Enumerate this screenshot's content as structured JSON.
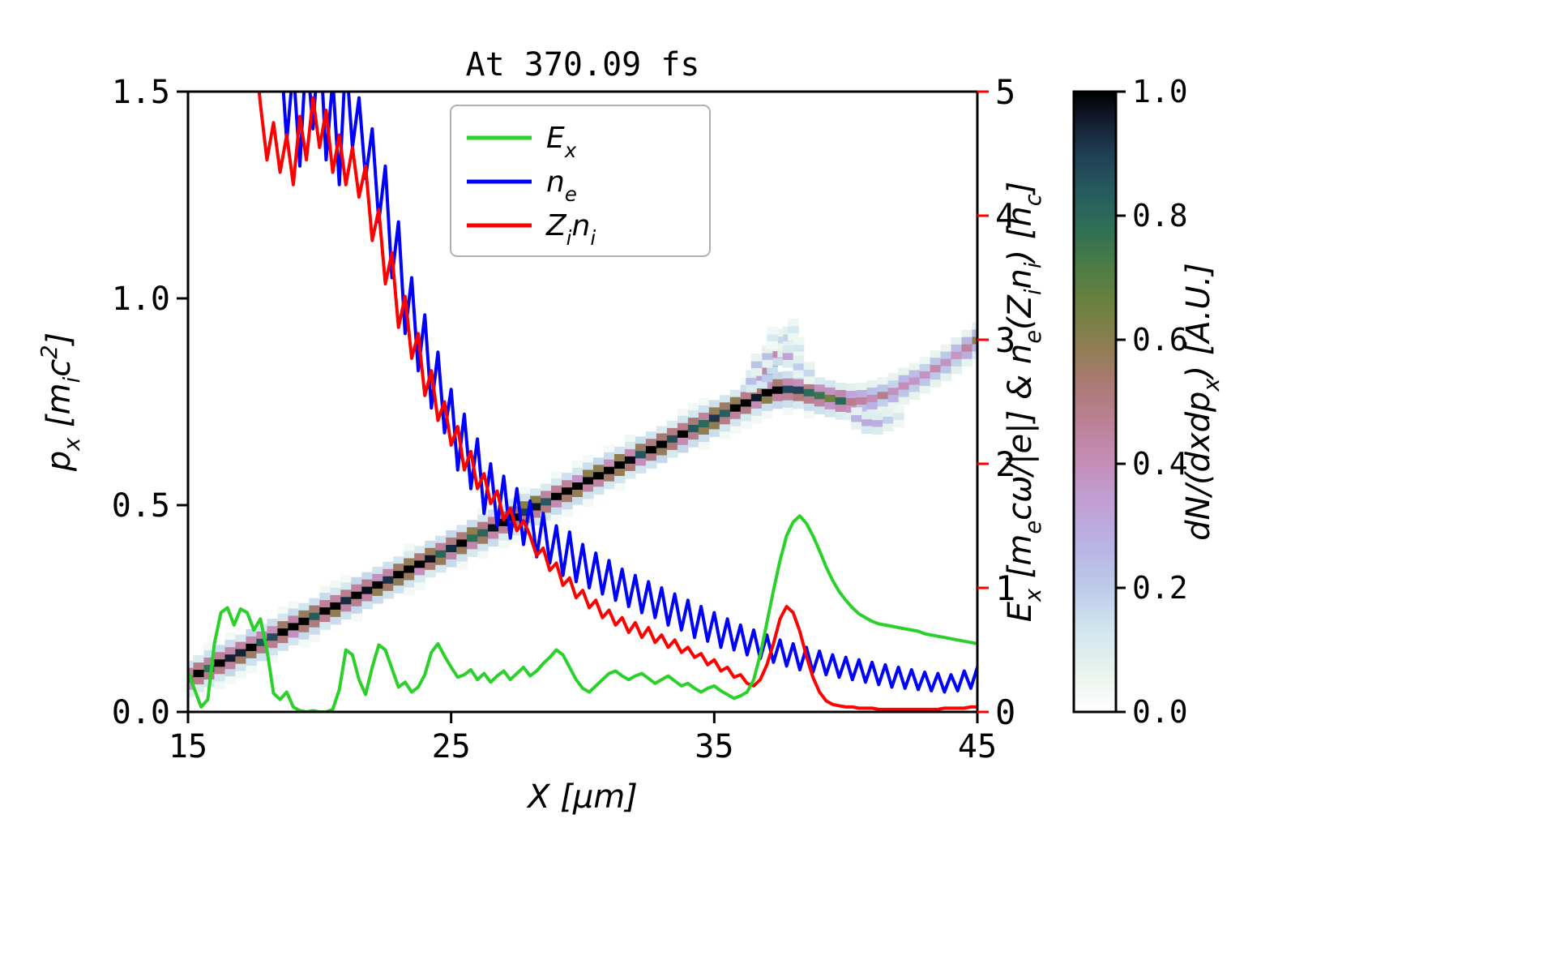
{
  "figure": {
    "background": "#ffffff"
  },
  "chart_data": {
    "type": "heatmap",
    "title": "At 370.09 fs",
    "xlabel": "X [μm]",
    "ylabel_left": "p_x [m_ic^2]",
    "ylabel_right": "E_x [m_ecω/|e|] & n_e(Z_in_i) [n_c]",
    "colorbar_label": "dN/(dxdp_x) [A.U.]",
    "xlim": [
      15,
      45
    ],
    "ylim_left": [
      0,
      1.5
    ],
    "ylim_right": [
      0,
      5
    ],
    "xticks": [
      "15",
      "25",
      "35",
      "45"
    ],
    "yticks_left": [
      "0.0",
      "0.5",
      "1.0",
      "1.5"
    ],
    "yticks_right": [
      "0",
      "1",
      "2",
      "3",
      "4",
      "5"
    ],
    "colorbar_ticks": [
      "0.0",
      "0.2",
      "0.4",
      "0.6",
      "0.8",
      "1.0"
    ],
    "axis_color_right": "#ff0000",
    "grid": false,
    "legend_position": "upper center inside",
    "legend": [
      {
        "label": "E_x",
        "color": "#2bd02b"
      },
      {
        "label": "n_e",
        "color": "#0000ff"
      },
      {
        "label": "Z_in_i",
        "color": "#ff0000"
      }
    ],
    "colormap": [
      [
        0.0,
        "#ffffff"
      ],
      [
        0.06,
        "#e9f4ee"
      ],
      [
        0.13,
        "#d2e7ef"
      ],
      [
        0.2,
        "#bccbe9"
      ],
      [
        0.27,
        "#b9b2e2"
      ],
      [
        0.34,
        "#c29ed3"
      ],
      [
        0.41,
        "#c48cb4"
      ],
      [
        0.47,
        "#bc7f95"
      ],
      [
        0.53,
        "#a97a74"
      ],
      [
        0.59,
        "#8f7d52"
      ],
      [
        0.65,
        "#6f8140"
      ],
      [
        0.72,
        "#4b7c44"
      ],
      [
        0.78,
        "#2f6f55"
      ],
      [
        0.84,
        "#265a60"
      ],
      [
        0.9,
        "#203f55"
      ],
      [
        0.95,
        "#131f33"
      ],
      [
        1.0,
        "#000000"
      ]
    ],
    "heatmap_ridge": {
      "comment": "phase-space trace: x in um, y center in left-axis units, amp = normalized dN/(dxdpx)",
      "x0": 15,
      "dx": 0.4,
      "y": [
        0.08,
        0.093,
        0.105,
        0.118,
        0.13,
        0.143,
        0.156,
        0.168,
        0.181,
        0.193,
        0.206,
        0.219,
        0.231,
        0.244,
        0.256,
        0.269,
        0.282,
        0.294,
        0.307,
        0.319,
        0.332,
        0.345,
        0.357,
        0.37,
        0.382,
        0.395,
        0.408,
        0.42,
        0.433,
        0.445,
        0.458,
        0.471,
        0.483,
        0.496,
        0.508,
        0.521,
        0.534,
        0.546,
        0.559,
        0.571,
        0.584,
        0.597,
        0.609,
        0.622,
        0.634,
        0.647,
        0.66,
        0.672,
        0.685,
        0.697,
        0.71,
        0.722,
        0.735,
        0.747,
        0.76,
        0.772,
        0.778,
        0.78,
        0.778,
        0.772,
        0.765,
        0.758,
        0.752,
        0.75,
        0.752,
        0.758,
        0.765,
        0.775,
        0.788,
        0.8,
        0.815,
        0.83,
        0.845,
        0.862,
        0.88,
        0.898
      ],
      "amp": [
        0.8,
        0.88,
        0.95,
        1,
        1,
        0.96,
        1,
        1,
        0.94,
        1,
        1,
        1,
        0.97,
        1,
        1,
        0.95,
        1,
        1,
        0.96,
        1,
        1,
        0.97,
        1,
        1,
        0.96,
        1,
        1,
        1,
        0.95,
        1,
        1,
        0.96,
        1,
        1,
        0.97,
        1,
        1,
        0.95,
        1,
        1,
        0.96,
        1,
        1,
        0.97,
        1,
        1,
        0.95,
        1,
        1,
        0.96,
        1,
        1,
        0.97,
        1,
        1,
        1,
        1,
        1,
        0.97,
        0.92,
        0.88,
        0.8,
        0.7,
        0.62,
        0.55,
        0.5,
        0.46,
        0.43,
        0.42,
        0.4,
        0.4,
        0.42,
        0.44,
        0.47,
        0.52,
        0.56
      ]
    },
    "heatmap_plume": [
      [
        36.4,
        0.8,
        0.3
      ],
      [
        36.8,
        0.81,
        0.4
      ],
      [
        37.0,
        0.825,
        0.5
      ],
      [
        37.2,
        0.845,
        0.45
      ],
      [
        37.4,
        0.865,
        0.38
      ],
      [
        37.6,
        0.885,
        0.3
      ],
      [
        37.8,
        0.905,
        0.2
      ],
      [
        38.0,
        0.925,
        0.12
      ],
      [
        37.0,
        0.86,
        0.22
      ],
      [
        37.4,
        0.9,
        0.15
      ],
      [
        37.8,
        0.86,
        0.3
      ],
      [
        38.2,
        0.88,
        0.12
      ],
      [
        38.2,
        0.835,
        0.22
      ],
      [
        38.6,
        0.82,
        0.15
      ],
      [
        36.6,
        0.84,
        0.2
      ],
      [
        37.2,
        0.905,
        0.1
      ],
      [
        40.4,
        0.71,
        0.22
      ],
      [
        40.8,
        0.7,
        0.28
      ],
      [
        41.2,
        0.698,
        0.25
      ],
      [
        41.6,
        0.706,
        0.18
      ],
      [
        42.0,
        0.715,
        0.12
      ]
    ],
    "series": [
      {
        "name": "E_x",
        "color": "#2bd02b",
        "axis": "right",
        "x0": 15,
        "dx": 0.25,
        "values": [
          0.32,
          0.18,
          0.04,
          0.1,
          0.55,
          0.8,
          0.84,
          0.7,
          0.83,
          0.8,
          0.66,
          0.75,
          0.5,
          0.15,
          0.1,
          0.16,
          0.04,
          0.01,
          0.0,
          0.01,
          0.0,
          0.0,
          0.02,
          0.18,
          0.5,
          0.46,
          0.26,
          0.14,
          0.36,
          0.54,
          0.5,
          0.35,
          0.2,
          0.24,
          0.16,
          0.2,
          0.3,
          0.48,
          0.55,
          0.45,
          0.36,
          0.28,
          0.3,
          0.34,
          0.26,
          0.31,
          0.24,
          0.29,
          0.33,
          0.26,
          0.31,
          0.36,
          0.29,
          0.33,
          0.39,
          0.44,
          0.5,
          0.46,
          0.36,
          0.26,
          0.19,
          0.16,
          0.21,
          0.26,
          0.31,
          0.33,
          0.29,
          0.26,
          0.29,
          0.31,
          0.27,
          0.23,
          0.26,
          0.29,
          0.25,
          0.21,
          0.23,
          0.19,
          0.16,
          0.19,
          0.21,
          0.17,
          0.14,
          0.11,
          0.13,
          0.16,
          0.26,
          0.46,
          0.72,
          0.98,
          1.22,
          1.42,
          1.53,
          1.58,
          1.52,
          1.42,
          1.3,
          1.17,
          1.06,
          0.97,
          0.9,
          0.84,
          0.79,
          0.76,
          0.73,
          0.71,
          0.7,
          0.69,
          0.68,
          0.67,
          0.66,
          0.65,
          0.63,
          0.62,
          0.61,
          0.6,
          0.59,
          0.58,
          0.57,
          0.56,
          0.55
        ]
      },
      {
        "name": "n_e",
        "color": "#0000ff",
        "axis": "right",
        "x0": 18.5,
        "dx": 0.25,
        "values": [
          5.4,
          4.6,
          5.2,
          4.4,
          5.35,
          4.7,
          5.5,
          4.45,
          5.1,
          4.25,
          5.3,
          4.55,
          4.95,
          4.3,
          4.7,
          3.95,
          4.4,
          3.5,
          3.95,
          3.05,
          3.5,
          2.75,
          3.2,
          2.45,
          2.9,
          2.25,
          2.6,
          1.95,
          2.4,
          1.8,
          2.2,
          1.6,
          2.0,
          1.5,
          1.9,
          1.4,
          1.8,
          1.35,
          1.7,
          1.25,
          1.6,
          1.2,
          1.5,
          1.1,
          1.45,
          1.05,
          1.35,
          1.0,
          1.28,
          0.95,
          1.22,
          0.9,
          1.15,
          0.85,
          1.1,
          0.8,
          1.05,
          0.76,
          1.0,
          0.7,
          0.95,
          0.66,
          0.9,
          0.6,
          0.85,
          0.57,
          0.8,
          0.52,
          0.75,
          0.5,
          0.7,
          0.46,
          0.66,
          0.43,
          0.62,
          0.4,
          0.58,
          0.37,
          0.55,
          0.34,
          0.52,
          0.32,
          0.49,
          0.3,
          0.46,
          0.28,
          0.44,
          0.26,
          0.42,
          0.24,
          0.4,
          0.22,
          0.38,
          0.2,
          0.36,
          0.19,
          0.34,
          0.18,
          0.32,
          0.17,
          0.31,
          0.16,
          0.3,
          0.17,
          0.33,
          0.19,
          0.36
        ]
      },
      {
        "name": "Z_in_i",
        "color": "#ff0000",
        "axis": "right",
        "x0": 17.5,
        "dx": 0.25,
        "values": [
          5.45,
          4.9,
          4.45,
          4.75,
          4.35,
          4.65,
          4.25,
          4.8,
          4.45,
          4.95,
          4.55,
          4.85,
          4.35,
          4.65,
          4.25,
          4.55,
          4.15,
          4.4,
          3.8,
          4.05,
          3.45,
          3.7,
          3.1,
          3.35,
          2.85,
          3.05,
          2.55,
          2.75,
          2.35,
          2.5,
          2.15,
          2.3,
          1.95,
          2.1,
          1.8,
          1.92,
          1.68,
          1.78,
          1.55,
          1.64,
          1.46,
          1.54,
          1.42,
          1.26,
          1.32,
          1.14,
          1.2,
          1.02,
          1.08,
          0.92,
          0.98,
          0.84,
          0.9,
          0.76,
          0.82,
          0.7,
          0.76,
          0.64,
          0.72,
          0.6,
          0.68,
          0.56,
          0.62,
          0.52,
          0.58,
          0.48,
          0.52,
          0.44,
          0.47,
          0.38,
          0.42,
          0.33,
          0.36,
          0.28,
          0.3,
          0.23,
          0.21,
          0.26,
          0.38,
          0.55,
          0.75,
          0.85,
          0.8,
          0.65,
          0.45,
          0.28,
          0.16,
          0.09,
          0.06,
          0.05,
          0.04,
          0.04,
          0.03,
          0.03,
          0.03,
          0.02,
          0.02,
          0.02,
          0.02,
          0.02,
          0.02,
          0.02,
          0.02,
          0.02,
          0.02,
          0.03,
          0.03,
          0.03,
          0.03,
          0.04,
          0.04
        ]
      }
    ]
  }
}
